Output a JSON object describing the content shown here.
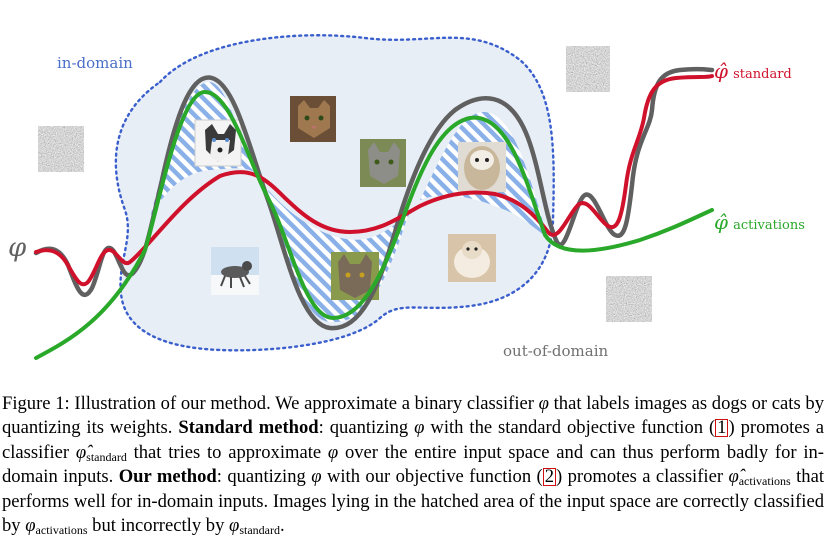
{
  "figure": {
    "label_in_domain": "in-domain",
    "label_out_of_domain": "out-of-domain",
    "label_phi": "φ",
    "label_standard_symbol": "φ̂",
    "label_standard_sub": "standard",
    "label_activations_symbol": "φ̂",
    "label_activations_sub": "activations",
    "colors": {
      "domain_border": "#3a5fcd",
      "domain_fill": "#e8eef6",
      "hatch": "#8ab0e8",
      "phi": "#606060",
      "standard": "#d0112b",
      "activations": "#2aa82a",
      "in_domain_text": "#4a6fc8",
      "out_domain_text": "#707070"
    },
    "images": [
      "husky-image",
      "tabby-cat-image",
      "gray-cat-image",
      "shih-tzu-image",
      "running-husky-image",
      "cat-portrait-image",
      "shih-tzu-standing-image",
      "noise-patch-image"
    ]
  },
  "caption": {
    "p1": "Figure 1: Illustration of our method. We approximate a binary classifier ",
    "phi1": "φ",
    "p2": " that labels images as dogs or cats by quantizing its weights. ",
    "std_bold": "Standard method",
    "p3": ": quantizing ",
    "phi2": "φ",
    "p4": " with the standard objective function (",
    "ref1": "1",
    "p5": ") promotes a classifier ",
    "hat1": "φ̂",
    "sub1": "standard",
    "p6": " that tries to approximate ",
    "phi3": "φ",
    "p7": " over the entire input space and can thus perform badly for in-domain inputs. ",
    "our_bold": "Our method",
    "p8": ": quantizing ",
    "phi4": "φ",
    "p9": " with our objective function (",
    "ref2": "2",
    "p10": ") promotes a classifier ",
    "hat2": "φ̂",
    "sub2": "activations",
    "p11": " that performs well for in-domain inputs. Images lying in the hatched area of the input space are correctly classified by ",
    "phi5": "φ",
    "sub3": "activations",
    "p12": " but incorrectly by ",
    "phi6": "φ",
    "sub4": "standard",
    "p13": "."
  }
}
